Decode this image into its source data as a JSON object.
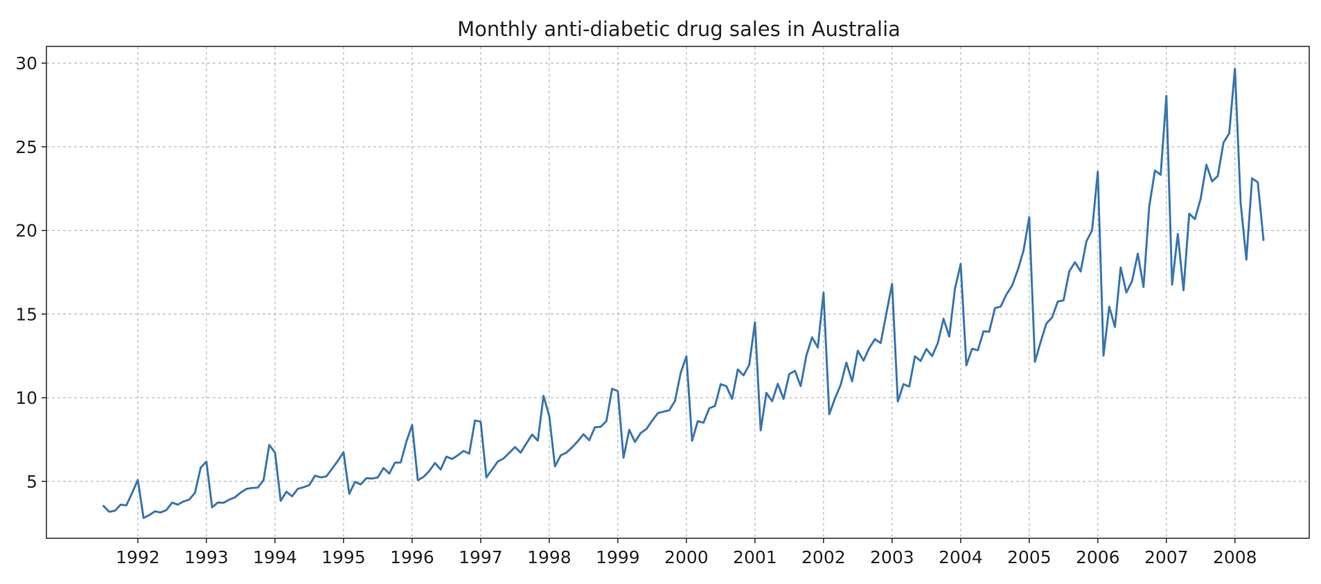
{
  "chart_data": {
    "type": "line",
    "title": "Monthly anti-diabetic drug sales in Australia",
    "xlabel": "",
    "ylabel": "",
    "x_start": "1991-07",
    "x_end": "2008-06",
    "xlim": [
      "1990-09",
      "2009-02"
    ],
    "ylim": [
      1.6,
      31.0
    ],
    "grid": true,
    "grid_style": "dashed",
    "legend": "none",
    "line_color": "#3a76ae",
    "x_ticks": [
      {
        "value": "1992-01",
        "label": "1992"
      },
      {
        "value": "1993-01",
        "label": "1993"
      },
      {
        "value": "1994-01",
        "label": "1994"
      },
      {
        "value": "1995-01",
        "label": "1995"
      },
      {
        "value": "1996-01",
        "label": "1996"
      },
      {
        "value": "1997-01",
        "label": "1997"
      },
      {
        "value": "1998-01",
        "label": "1998"
      },
      {
        "value": "1999-01",
        "label": "1999"
      },
      {
        "value": "2000-01",
        "label": "2000"
      },
      {
        "value": "2001-01",
        "label": "2001"
      },
      {
        "value": "2002-01",
        "label": "2002"
      },
      {
        "value": "2003-01",
        "label": "2003"
      },
      {
        "value": "2004-01",
        "label": "2004"
      },
      {
        "value": "2005-01",
        "label": "2005"
      },
      {
        "value": "2006-01",
        "label": "2006"
      },
      {
        "value": "2007-01",
        "label": "2007"
      },
      {
        "value": "2008-01",
        "label": "2008"
      }
    ],
    "y_ticks": [
      {
        "value": 5,
        "label": "5"
      },
      {
        "value": 10,
        "label": "10"
      },
      {
        "value": 15,
        "label": "15"
      },
      {
        "value": 20,
        "label": "20"
      },
      {
        "value": 25,
        "label": "25"
      },
      {
        "value": 30,
        "label": "30"
      }
    ],
    "series": [
      {
        "values": [
          3.53,
          3.18,
          3.25,
          3.61,
          3.57,
          4.31,
          5.09,
          2.81,
          2.99,
          3.21,
          3.14,
          3.29,
          3.73,
          3.61,
          3.8,
          3.91,
          4.32,
          5.82,
          6.18,
          3.45,
          3.74,
          3.72,
          3.91,
          4.05,
          4.33,
          4.55,
          4.61,
          4.63,
          5.08,
          7.18,
          6.73,
          3.84,
          4.38,
          4.11,
          4.56,
          4.65,
          4.78,
          5.34,
          5.24,
          5.3,
          5.76,
          6.23,
          6.74,
          4.26,
          4.97,
          4.82,
          5.19,
          5.17,
          5.24,
          5.8,
          5.47,
          6.12,
          6.13,
          7.38,
          8.37,
          5.07,
          5.27,
          5.62,
          6.1,
          5.71,
          6.48,
          6.34,
          6.56,
          6.82,
          6.66,
          8.64,
          8.57,
          5.24,
          5.71,
          6.19,
          6.37,
          6.7,
          7.05,
          6.72,
          7.27,
          7.8,
          7.44,
          10.11,
          8.91,
          5.9,
          6.55,
          6.72,
          7.04,
          7.4,
          7.82,
          7.46,
          8.24,
          8.26,
          8.61,
          10.54,
          10.4,
          6.42,
          8.08,
          7.36,
          7.89,
          8.13,
          8.63,
          9.08,
          9.17,
          9.25,
          9.8,
          11.48,
          12.48,
          7.43,
          8.6,
          8.51,
          9.37,
          9.51,
          10.81,
          10.69,
          9.93,
          11.69,
          11.34,
          11.97,
          14.51,
          8.05,
          10.29,
          9.79,
          10.83,
          9.93,
          11.41,
          11.61,
          10.7,
          12.53,
          13.61,
          13.01,
          16.28,
          9.02,
          9.96,
          10.77,
          12.1,
          10.98,
          12.81,
          12.22,
          12.97,
          13.5,
          13.27,
          15.04,
          16.81,
          9.78,
          10.81,
          10.67,
          12.48,
          12.2,
          12.92,
          12.49,
          13.27,
          14.72,
          13.66,
          16.51,
          18.0,
          11.94,
          12.93,
          12.84,
          13.97,
          13.95,
          15.36,
          15.45,
          16.17,
          16.7,
          17.64,
          18.79,
          20.79,
          12.15,
          13.34,
          14.44,
          14.8,
          15.75,
          15.82,
          17.55,
          18.1,
          17.55,
          19.34,
          20.01,
          23.51,
          12.52,
          15.44,
          14.23,
          17.78,
          16.29,
          16.98,
          18.61,
          16.62,
          21.43,
          23.58,
          23.33,
          28.04,
          16.76,
          19.79,
          16.43,
          21.0,
          20.68,
          21.9,
          23.93,
          22.93,
          23.26,
          25.25,
          25.81,
          29.67,
          21.65,
          18.26,
          23.11,
          22.88,
          19.43
        ]
      }
    ]
  }
}
